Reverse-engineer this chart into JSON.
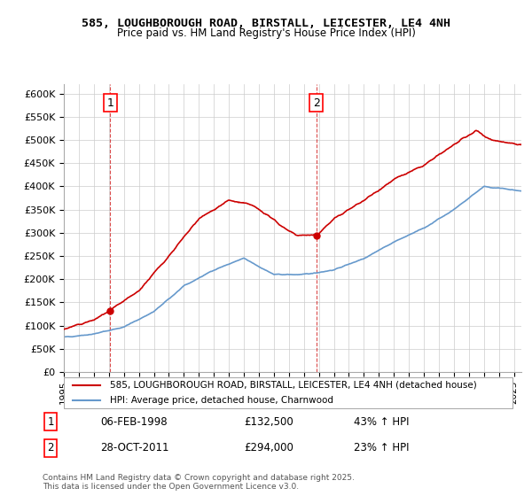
{
  "title_line1": "585, LOUGHBOROUGH ROAD, BIRSTALL, LEICESTER, LE4 4NH",
  "title_line2": "Price paid vs. HM Land Registry's House Price Index (HPI)",
  "ylabel_ticks": [
    "£0",
    "£50K",
    "£100K",
    "£150K",
    "£200K",
    "£250K",
    "£300K",
    "£350K",
    "£400K",
    "£450K",
    "£500K",
    "£550K",
    "£600K"
  ],
  "ytick_values": [
    0,
    50000,
    100000,
    150000,
    200000,
    250000,
    300000,
    350000,
    400000,
    450000,
    500000,
    550000,
    600000
  ],
  "xlim": [
    1995.0,
    2025.5
  ],
  "ylim": [
    0,
    620000
  ],
  "legend_line1": "585, LOUGHBOROUGH ROAD, BIRSTALL, LEICESTER, LE4 4NH (detached house)",
  "legend_line2": "HPI: Average price, detached house, Charnwood",
  "annotation1_label": "1",
  "annotation1_date": "06-FEB-1998",
  "annotation1_price": "£132,500",
  "annotation1_hpi": "43% ↑ HPI",
  "annotation2_label": "2",
  "annotation2_date": "28-OCT-2011",
  "annotation2_price": "£294,000",
  "annotation2_hpi": "23% ↑ HPI",
  "footnote": "Contains HM Land Registry data © Crown copyright and database right 2025.\nThis data is licensed under the Open Government Licence v3.0.",
  "sale1_x": 1998.09,
  "sale1_y": 132500,
  "sale2_x": 2011.83,
  "sale2_y": 294000,
  "line_color_red": "#cc0000",
  "line_color_blue": "#6699cc",
  "background_color": "#ffffff",
  "grid_color": "#cccccc"
}
